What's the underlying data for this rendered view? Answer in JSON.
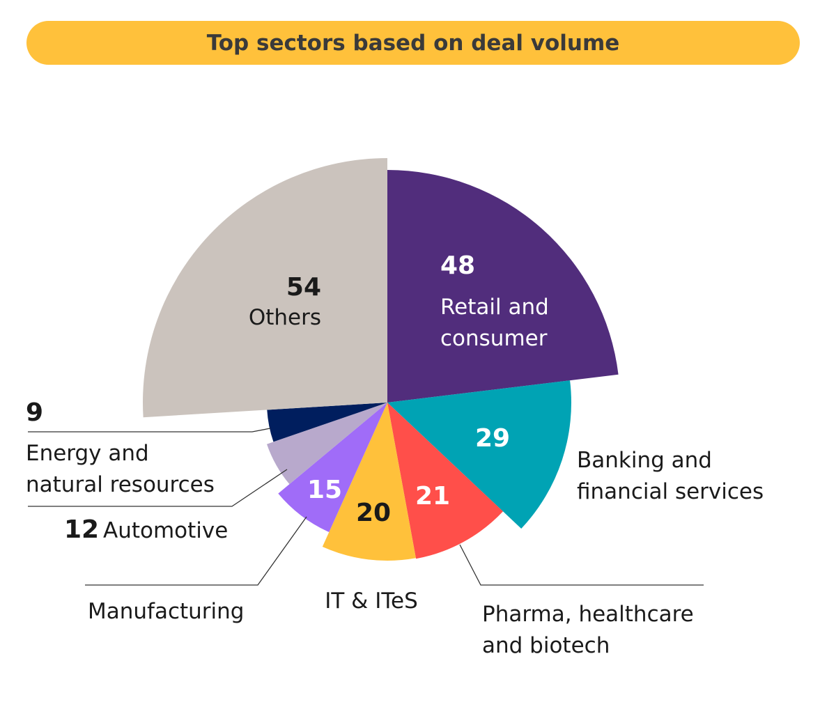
{
  "chart_data": {
    "type": "pie",
    "variant": "polar-area (variable radius)",
    "title": "Top sectors based on deal volume",
    "slices": [
      {
        "label_lines": [
          "Retail and",
          "consumer"
        ],
        "value": 48,
        "color": "#512D7C"
      },
      {
        "label_lines": [
          "Banking and",
          "financial services"
        ],
        "value": 29,
        "color": "#00A3B4"
      },
      {
        "label_lines": [
          "Pharma, healthcare",
          "and biotech"
        ],
        "value": 21,
        "color": "#FF4F4A"
      },
      {
        "label_lines": [
          "IT & ITeS"
        ],
        "value": 20,
        "color": "#FFC13B"
      },
      {
        "label_lines": [
          "Manufacturing"
        ],
        "value": 15,
        "color": "#A06CF8"
      },
      {
        "label_lines": [
          "Automotive"
        ],
        "value": 12,
        "color": "#B8A9CC"
      },
      {
        "label_lines": [
          "Energy and",
          "natural resources"
        ],
        "value": 9,
        "color": "#001E5E"
      },
      {
        "label_lines": [
          "Others"
        ],
        "value": 54,
        "color": "#CBC3BD"
      }
    ],
    "title_bar_color": "#FFC13B"
  }
}
